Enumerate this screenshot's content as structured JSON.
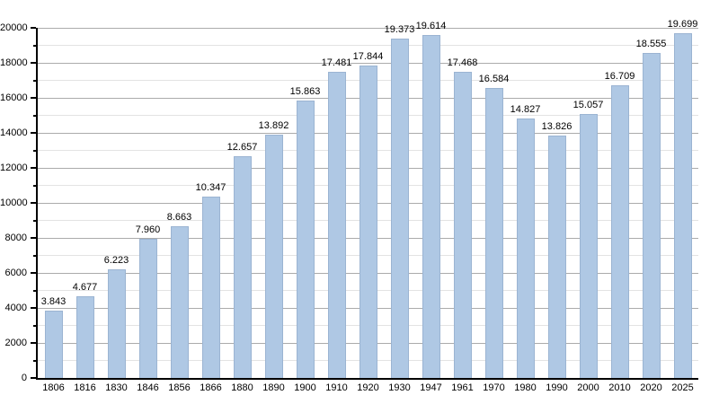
{
  "chart_data": {
    "type": "bar",
    "title": "",
    "xlabel": "",
    "ylabel": "",
    "categories": [
      "1806",
      "1816",
      "1830",
      "1846",
      "1856",
      "1866",
      "1880",
      "1890",
      "1900",
      "1910",
      "1920",
      "1930",
      "1947",
      "1961",
      "1970",
      "1980",
      "1990",
      "2000",
      "2010",
      "2020",
      "2025"
    ],
    "values": [
      3843,
      4677,
      6223,
      7960,
      8663,
      10347,
      12657,
      13892,
      15863,
      17481,
      17844,
      19373,
      19614,
      17468,
      16584,
      14827,
      13826,
      15057,
      16709,
      18555,
      19699
    ],
    "value_labels": [
      "3.843",
      "4.677",
      "6.223",
      "7.960",
      "8.663",
      "10.347",
      "12.657",
      "13.892",
      "15.863",
      "17.481",
      "17.844",
      "19.373",
      "19.614",
      "17.468",
      "16.584",
      "14.827",
      "13.826",
      "15.057",
      "16.709",
      "18.555",
      "19.699"
    ],
    "y_tick_labels": [
      "0",
      "2000",
      "4000",
      "6000",
      "8000",
      "10000",
      "12000",
      "14000",
      "16000",
      "18000",
      "20000"
    ],
    "ylim": [
      0,
      20000
    ],
    "y_major_step": 2000,
    "y_minor_step": 1000,
    "grid": "on",
    "legend": "none",
    "colors": {
      "bar_fill": "#afc8e4",
      "bar_border": "#9bb4d2",
      "grid_major": "#ababab",
      "grid_minor": "#e3e3e3",
      "axis": "#000000",
      "text": "#000000",
      "background": "#ffffff"
    }
  }
}
